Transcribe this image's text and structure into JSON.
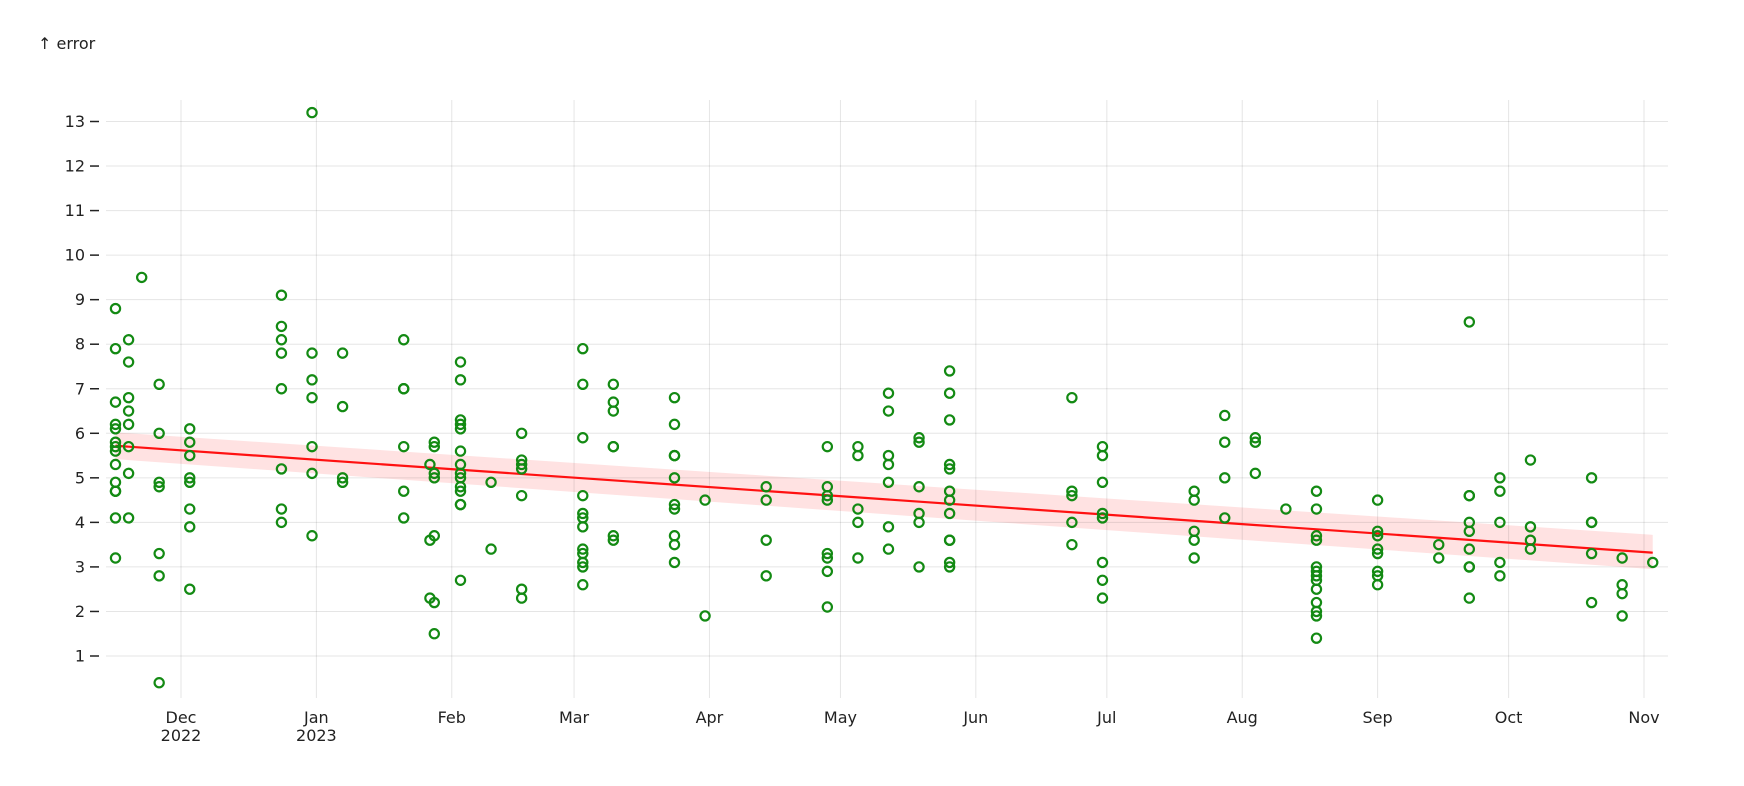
{
  "chart_data": {
    "type": "scatter",
    "title": "",
    "ylabel": "↑ error",
    "xlabel": "",
    "ylim": [
      0,
      13.5
    ],
    "xlim": [
      "2022-11-15",
      "2022-11-03"
    ],
    "y_ticks": [
      1,
      2,
      3,
      4,
      5,
      6,
      7,
      8,
      9,
      10,
      11,
      12,
      13
    ],
    "x_ticks": [
      {
        "date": "2022-12-01",
        "label": "Dec",
        "sublabel": "2022"
      },
      {
        "date": "2023-01-01",
        "label": "Jan",
        "sublabel": "2023"
      },
      {
        "date": "2023-02-01",
        "label": "Feb",
        "sublabel": ""
      },
      {
        "date": "2023-03-01",
        "label": "Mar",
        "sublabel": ""
      },
      {
        "date": "2023-04-01",
        "label": "Apr",
        "sublabel": ""
      },
      {
        "date": "2023-05-01",
        "label": "May",
        "sublabel": ""
      },
      {
        "date": "2023-06-01",
        "label": "Jun",
        "sublabel": ""
      },
      {
        "date": "2023-07-01",
        "label": "Jul",
        "sublabel": ""
      },
      {
        "date": "2023-08-01",
        "label": "Aug",
        "sublabel": ""
      },
      {
        "date": "2023-09-01",
        "label": "Sep",
        "sublabel": ""
      },
      {
        "date": "2023-10-01",
        "label": "Oct",
        "sublabel": ""
      },
      {
        "date": "2023-11-01",
        "label": "Nov",
        "sublabel": ""
      }
    ],
    "grid": true,
    "point_color": "#138a13",
    "line_color": "#ff1111",
    "band_color": "#ff3b3b",
    "regression": {
      "start": {
        "date": "2022-11-16",
        "y": 5.72
      },
      "end": {
        "date": "2023-11-03",
        "y": 3.32
      },
      "band_start": [
        5.42,
        6.02
      ],
      "band_end": [
        2.95,
        3.72
      ]
    },
    "points": [
      [
        "2022-11-16",
        8.8
      ],
      [
        "2022-11-16",
        7.9
      ],
      [
        "2022-11-16",
        6.7
      ],
      [
        "2022-11-16",
        6.2
      ],
      [
        "2022-11-16",
        6.1
      ],
      [
        "2022-11-16",
        5.8
      ],
      [
        "2022-11-16",
        5.7
      ],
      [
        "2022-11-16",
        5.6
      ],
      [
        "2022-11-16",
        5.3
      ],
      [
        "2022-11-16",
        4.9
      ],
      [
        "2022-11-16",
        4.7
      ],
      [
        "2022-11-16",
        4.7
      ],
      [
        "2022-11-16",
        4.1
      ],
      [
        "2022-11-16",
        3.2
      ],
      [
        "2022-11-19",
        8.1
      ],
      [
        "2022-11-19",
        7.6
      ],
      [
        "2022-11-19",
        6.8
      ],
      [
        "2022-11-19",
        6.5
      ],
      [
        "2022-11-19",
        6.2
      ],
      [
        "2022-11-19",
        5.7
      ],
      [
        "2022-11-19",
        5.1
      ],
      [
        "2022-11-19",
        4.1
      ],
      [
        "2022-11-22",
        9.5
      ],
      [
        "2022-11-26",
        7.1
      ],
      [
        "2022-11-26",
        6.0
      ],
      [
        "2022-11-26",
        4.9
      ],
      [
        "2022-11-26",
        4.8
      ],
      [
        "2022-11-26",
        3.3
      ],
      [
        "2022-11-26",
        2.8
      ],
      [
        "2022-11-26",
        0.4
      ],
      [
        "2022-12-03",
        6.1
      ],
      [
        "2022-12-03",
        5.8
      ],
      [
        "2022-12-03",
        5.5
      ],
      [
        "2022-12-03",
        5.0
      ],
      [
        "2022-12-03",
        4.9
      ],
      [
        "2022-12-03",
        4.3
      ],
      [
        "2022-12-03",
        3.9
      ],
      [
        "2022-12-03",
        2.5
      ],
      [
        "2022-12-24",
        9.1
      ],
      [
        "2022-12-24",
        8.4
      ],
      [
        "2022-12-24",
        8.1
      ],
      [
        "2022-12-24",
        7.8
      ],
      [
        "2022-12-24",
        7.0
      ],
      [
        "2022-12-24",
        5.2
      ],
      [
        "2022-12-24",
        4.3
      ],
      [
        "2022-12-24",
        4.0
      ],
      [
        "2022-12-31",
        13.2
      ],
      [
        "2022-12-31",
        7.8
      ],
      [
        "2022-12-31",
        7.2
      ],
      [
        "2022-12-31",
        6.8
      ],
      [
        "2022-12-31",
        5.7
      ],
      [
        "2022-12-31",
        5.1
      ],
      [
        "2022-12-31",
        3.7
      ],
      [
        "2023-01-07",
        7.8
      ],
      [
        "2023-01-07",
        6.6
      ],
      [
        "2023-01-07",
        5.0
      ],
      [
        "2023-01-07",
        4.9
      ],
      [
        "2023-01-21",
        8.1
      ],
      [
        "2023-01-21",
        7.0
      ],
      [
        "2023-01-21",
        7.0
      ],
      [
        "2023-01-21",
        5.7
      ],
      [
        "2023-01-21",
        4.7
      ],
      [
        "2023-01-21",
        4.1
      ],
      [
        "2023-01-27",
        5.3
      ],
      [
        "2023-01-27",
        3.6
      ],
      [
        "2023-01-27",
        2.3
      ],
      [
        "2023-01-28",
        5.8
      ],
      [
        "2023-01-28",
        5.7
      ],
      [
        "2023-01-28",
        5.1
      ],
      [
        "2023-01-28",
        5.0
      ],
      [
        "2023-01-28",
        3.7
      ],
      [
        "2023-01-28",
        2.2
      ],
      [
        "2023-01-28",
        1.5
      ],
      [
        "2023-02-03",
        7.6
      ],
      [
        "2023-02-03",
        7.2
      ],
      [
        "2023-02-03",
        6.3
      ],
      [
        "2023-02-03",
        6.2
      ],
      [
        "2023-02-03",
        6.1
      ],
      [
        "2023-02-03",
        5.6
      ],
      [
        "2023-02-03",
        5.3
      ],
      [
        "2023-02-03",
        5.1
      ],
      [
        "2023-02-03",
        5.0
      ],
      [
        "2023-02-03",
        4.8
      ],
      [
        "2023-02-03",
        4.7
      ],
      [
        "2023-02-03",
        4.4
      ],
      [
        "2023-02-03",
        4.4
      ],
      [
        "2023-02-03",
        2.7
      ],
      [
        "2023-02-10",
        4.9
      ],
      [
        "2023-02-10",
        3.4
      ],
      [
        "2023-02-17",
        6.0
      ],
      [
        "2023-02-17",
        5.4
      ],
      [
        "2023-02-17",
        5.3
      ],
      [
        "2023-02-17",
        5.2
      ],
      [
        "2023-02-17",
        4.6
      ],
      [
        "2023-02-17",
        2.5
      ],
      [
        "2023-02-17",
        2.3
      ],
      [
        "2023-03-03",
        7.9
      ],
      [
        "2023-03-03",
        7.1
      ],
      [
        "2023-03-03",
        5.9
      ],
      [
        "2023-03-03",
        4.6
      ],
      [
        "2023-03-03",
        4.2
      ],
      [
        "2023-03-03",
        4.1
      ],
      [
        "2023-03-03",
        3.9
      ],
      [
        "2023-03-03",
        3.4
      ],
      [
        "2023-03-03",
        3.3
      ],
      [
        "2023-03-03",
        3.1
      ],
      [
        "2023-03-03",
        3.0
      ],
      [
        "2023-03-03",
        2.6
      ],
      [
        "2023-03-10",
        7.1
      ],
      [
        "2023-03-10",
        6.7
      ],
      [
        "2023-03-10",
        6.5
      ],
      [
        "2023-03-10",
        5.7
      ],
      [
        "2023-03-10",
        5.7
      ],
      [
        "2023-03-10",
        3.7
      ],
      [
        "2023-03-10",
        3.6
      ],
      [
        "2023-03-24",
        6.8
      ],
      [
        "2023-03-24",
        6.2
      ],
      [
        "2023-03-24",
        5.5
      ],
      [
        "2023-03-24",
        5.5
      ],
      [
        "2023-03-24",
        5.0
      ],
      [
        "2023-03-24",
        4.4
      ],
      [
        "2023-03-24",
        4.3
      ],
      [
        "2023-03-24",
        3.7
      ],
      [
        "2023-03-24",
        3.5
      ],
      [
        "2023-03-24",
        3.1
      ],
      [
        "2023-03-31",
        4.5
      ],
      [
        "2023-03-31",
        1.9
      ],
      [
        "2023-04-14",
        4.8
      ],
      [
        "2023-04-14",
        4.5
      ],
      [
        "2023-04-14",
        3.6
      ],
      [
        "2023-04-14",
        2.8
      ],
      [
        "2023-04-28",
        5.7
      ],
      [
        "2023-04-28",
        4.8
      ],
      [
        "2023-04-28",
        4.6
      ],
      [
        "2023-04-28",
        4.5
      ],
      [
        "2023-04-28",
        3.3
      ],
      [
        "2023-04-28",
        3.2
      ],
      [
        "2023-04-28",
        2.9
      ],
      [
        "2023-04-28",
        2.1
      ],
      [
        "2023-05-05",
        5.7
      ],
      [
        "2023-05-05",
        5.5
      ],
      [
        "2023-05-05",
        4.3
      ],
      [
        "2023-05-05",
        4.0
      ],
      [
        "2023-05-05",
        3.2
      ],
      [
        "2023-05-12",
        6.9
      ],
      [
        "2023-05-12",
        6.5
      ],
      [
        "2023-05-12",
        5.5
      ],
      [
        "2023-05-12",
        5.3
      ],
      [
        "2023-05-12",
        4.9
      ],
      [
        "2023-05-12",
        3.9
      ],
      [
        "2023-05-12",
        3.4
      ],
      [
        "2023-05-19",
        5.9
      ],
      [
        "2023-05-19",
        5.8
      ],
      [
        "2023-05-19",
        4.8
      ],
      [
        "2023-05-19",
        4.2
      ],
      [
        "2023-05-19",
        4.0
      ],
      [
        "2023-05-19",
        3.0
      ],
      [
        "2023-05-26",
        7.4
      ],
      [
        "2023-05-26",
        6.9
      ],
      [
        "2023-05-26",
        6.3
      ],
      [
        "2023-05-26",
        5.3
      ],
      [
        "2023-05-26",
        5.2
      ],
      [
        "2023-05-26",
        4.7
      ],
      [
        "2023-05-26",
        4.5
      ],
      [
        "2023-05-26",
        4.2
      ],
      [
        "2023-05-26",
        3.6
      ],
      [
        "2023-05-26",
        3.6
      ],
      [
        "2023-05-26",
        3.1
      ],
      [
        "2023-05-26",
        3.0
      ],
      [
        "2023-06-23",
        6.8
      ],
      [
        "2023-06-23",
        4.7
      ],
      [
        "2023-06-23",
        4.6
      ],
      [
        "2023-06-23",
        4.0
      ],
      [
        "2023-06-23",
        3.5
      ],
      [
        "2023-06-30",
        5.7
      ],
      [
        "2023-06-30",
        5.5
      ],
      [
        "2023-06-30",
        4.9
      ],
      [
        "2023-06-30",
        4.2
      ],
      [
        "2023-06-30",
        4.1
      ],
      [
        "2023-06-30",
        3.1
      ],
      [
        "2023-06-30",
        2.7
      ],
      [
        "2023-06-30",
        2.3
      ],
      [
        "2023-07-21",
        4.7
      ],
      [
        "2023-07-21",
        4.5
      ],
      [
        "2023-07-21",
        3.8
      ],
      [
        "2023-07-21",
        3.6
      ],
      [
        "2023-07-21",
        3.2
      ],
      [
        "2023-07-28",
        6.4
      ],
      [
        "2023-07-28",
        5.8
      ],
      [
        "2023-07-28",
        5.0
      ],
      [
        "2023-07-28",
        4.1
      ],
      [
        "2023-08-04",
        5.9
      ],
      [
        "2023-08-04",
        5.8
      ],
      [
        "2023-08-04",
        5.1
      ],
      [
        "2023-08-11",
        4.3
      ],
      [
        "2023-08-18",
        4.7
      ],
      [
        "2023-08-18",
        4.3
      ],
      [
        "2023-08-18",
        3.7
      ],
      [
        "2023-08-18",
        3.6
      ],
      [
        "2023-08-18",
        3.0
      ],
      [
        "2023-08-18",
        2.9
      ],
      [
        "2023-08-18",
        2.8
      ],
      [
        "2023-08-18",
        2.7
      ],
      [
        "2023-08-18",
        2.5
      ],
      [
        "2023-08-18",
        2.2
      ],
      [
        "2023-08-18",
        2.0
      ],
      [
        "2023-08-18",
        1.9
      ],
      [
        "2023-08-18",
        1.4
      ],
      [
        "2023-09-01",
        4.5
      ],
      [
        "2023-09-01",
        3.8
      ],
      [
        "2023-09-01",
        3.7
      ],
      [
        "2023-09-01",
        3.4
      ],
      [
        "2023-09-01",
        3.3
      ],
      [
        "2023-09-01",
        2.9
      ],
      [
        "2023-09-01",
        2.8
      ],
      [
        "2023-09-01",
        2.6
      ],
      [
        "2023-09-15",
        3.5
      ],
      [
        "2023-09-15",
        3.2
      ],
      [
        "2023-09-22",
        8.5
      ],
      [
        "2023-09-22",
        4.6
      ],
      [
        "2023-09-22",
        4.6
      ],
      [
        "2023-09-22",
        4.0
      ],
      [
        "2023-09-22",
        3.8
      ],
      [
        "2023-09-22",
        3.4
      ],
      [
        "2023-09-22",
        3.0
      ],
      [
        "2023-09-22",
        3.0
      ],
      [
        "2023-09-22",
        2.3
      ],
      [
        "2023-09-29",
        5.0
      ],
      [
        "2023-09-29",
        4.7
      ],
      [
        "2023-09-29",
        4.0
      ],
      [
        "2023-09-29",
        3.1
      ],
      [
        "2023-09-29",
        2.8
      ],
      [
        "2023-10-06",
        5.4
      ],
      [
        "2023-10-06",
        3.9
      ],
      [
        "2023-10-06",
        3.6
      ],
      [
        "2023-10-06",
        3.4
      ],
      [
        "2023-10-20",
        5.0
      ],
      [
        "2023-10-20",
        4.0
      ],
      [
        "2023-10-20",
        4.0
      ],
      [
        "2023-10-20",
        3.3
      ],
      [
        "2023-10-20",
        2.2
      ],
      [
        "2023-10-27",
        3.2
      ],
      [
        "2023-10-27",
        2.6
      ],
      [
        "2023-10-27",
        2.4
      ],
      [
        "2023-10-27",
        1.9
      ],
      [
        "2023-11-03",
        3.1
      ]
    ]
  }
}
